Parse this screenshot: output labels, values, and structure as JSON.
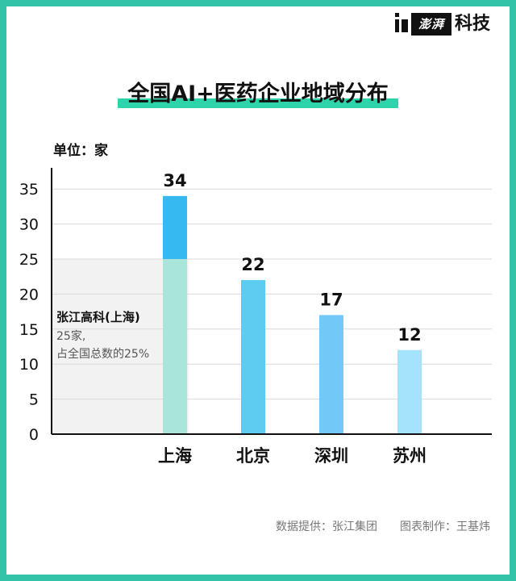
{
  "brand": {
    "stamp": "澎湃",
    "text": "科技"
  },
  "title": "全国AI+医药企业地域分布",
  "unit_label": "单位：家",
  "annotation": {
    "heading": "张江高科(上海)",
    "line1": "25家,",
    "line2": "占全国总数的25%"
  },
  "source": {
    "data": "数据提供：张江集团",
    "author": "图表制作：王基炜"
  },
  "colors": {
    "frame": "#33c3a8",
    "highlight": "#2ed3a9",
    "shanghai_top": "#36b9f0",
    "shanghai_bottom": "#a9e6d9",
    "beijing": "#5cccf1",
    "shenzhen": "#72c9f8",
    "suzhou": "#a4e3fb",
    "shaded_region": "#f2f2f2"
  },
  "chart_data": {
    "type": "bar",
    "categories": [
      "上海",
      "北京",
      "深圳",
      "苏州"
    ],
    "values": [
      34,
      22,
      17,
      12
    ],
    "data_labels": [
      "34",
      "22",
      "17",
      "12"
    ],
    "segments": {
      "上海": [
        {
          "value": 25,
          "label": "张江高科(上海)"
        },
        {
          "value": 9
        }
      ]
    },
    "title": "全国AI+医药企业地域分布",
    "xlabel": "",
    "ylabel": "单位：家",
    "yticks": [
      0,
      5,
      10,
      15,
      20,
      25,
      30,
      35
    ],
    "ylim": [
      0,
      38
    ],
    "grid": true,
    "legend": "none"
  }
}
